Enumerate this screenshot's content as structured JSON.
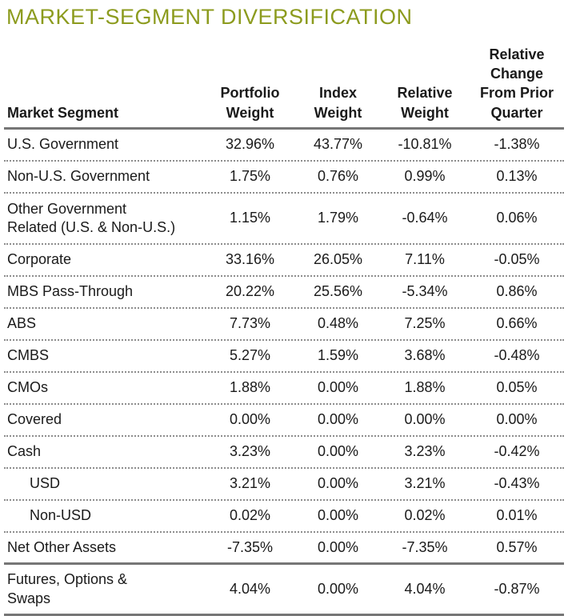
{
  "title": "MARKET-SEGMENT DIVERSIFICATION",
  "colors": {
    "title_green": "#8C9B1E",
    "body_text": "#1A1A1A",
    "solid_rule_gray": "#767676",
    "dotted_rule_gray": "#8D8D8D"
  },
  "table": {
    "columns": [
      "Market Segment",
      "Portfolio\nWeight",
      "Index\nWeight",
      "Relative\nWeight",
      "Relative\nChange\nFrom Prior\nQuarter"
    ],
    "rows": [
      {
        "segment": "U.S. Government",
        "values": [
          "32.96%",
          "43.77%",
          "-10.81%",
          "-1.38%"
        ]
      },
      {
        "segment": "Non-U.S. Government",
        "values": [
          "1.75%",
          "0.76%",
          "0.99%",
          "0.13%"
        ]
      },
      {
        "segment": "Other Government\nRelated (U.S. & Non-U.S.)",
        "tall": true,
        "values": [
          "1.15%",
          "1.79%",
          "-0.64%",
          "0.06%"
        ]
      },
      {
        "segment": "Corporate",
        "values": [
          "33.16%",
          "26.05%",
          "7.11%",
          "-0.05%"
        ]
      },
      {
        "segment": "MBS Pass-Through",
        "values": [
          "20.22%",
          "25.56%",
          "-5.34%",
          "0.86%"
        ]
      },
      {
        "segment": "ABS",
        "values": [
          "7.73%",
          "0.48%",
          "7.25%",
          "0.66%"
        ]
      },
      {
        "segment": "CMBS",
        "values": [
          "5.27%",
          "1.59%",
          "3.68%",
          "-0.48%"
        ]
      },
      {
        "segment": "CMOs",
        "values": [
          "1.88%",
          "0.00%",
          "1.88%",
          "0.05%"
        ]
      },
      {
        "segment": "Covered",
        "values": [
          "0.00%",
          "0.00%",
          "0.00%",
          "0.00%"
        ]
      },
      {
        "segment": "Cash",
        "values": [
          "3.23%",
          "0.00%",
          "3.23%",
          "-0.42%"
        ]
      },
      {
        "segment": "USD",
        "indent": true,
        "values": [
          "3.21%",
          "0.00%",
          "3.21%",
          "-0.43%"
        ]
      },
      {
        "segment": "Non-USD",
        "indent": true,
        "values": [
          "0.02%",
          "0.00%",
          "0.02%",
          "0.01%"
        ]
      },
      {
        "segment": "Net Other Assets",
        "separator": "solid",
        "values": [
          "-7.35%",
          "0.00%",
          "-7.35%",
          "0.57%"
        ]
      },
      {
        "segment": "Futures, Options &\nSwaps",
        "tall": true,
        "separator": "solid",
        "values": [
          "4.04%",
          "0.00%",
          "4.04%",
          "-0.87%"
        ]
      }
    ]
  },
  "chart_data": {
    "type": "table",
    "title": "MARKET-SEGMENT DIVERSIFICATION",
    "columns": [
      "Market Segment",
      "Portfolio Weight",
      "Index Weight",
      "Relative Weight",
      "Relative Change From Prior Quarter"
    ],
    "rows": [
      [
        "U.S. Government",
        32.96,
        43.77,
        -10.81,
        -1.38
      ],
      [
        "Non-U.S. Government",
        1.75,
        0.76,
        0.99,
        0.13
      ],
      [
        "Other Government Related (U.S. & Non-U.S.)",
        1.15,
        1.79,
        -0.64,
        0.06
      ],
      [
        "Corporate",
        33.16,
        26.05,
        7.11,
        -0.05
      ],
      [
        "MBS Pass-Through",
        20.22,
        25.56,
        -5.34,
        0.86
      ],
      [
        "ABS",
        7.73,
        0.48,
        7.25,
        0.66
      ],
      [
        "CMBS",
        5.27,
        1.59,
        3.68,
        -0.48
      ],
      [
        "CMOs",
        1.88,
        0.0,
        1.88,
        0.05
      ],
      [
        "Covered",
        0.0,
        0.0,
        0.0,
        0.0
      ],
      [
        "Cash",
        3.23,
        0.0,
        3.23,
        -0.42
      ],
      [
        "USD",
        3.21,
        0.0,
        3.21,
        -0.43
      ],
      [
        "Non-USD",
        0.02,
        0.0,
        0.02,
        0.01
      ],
      [
        "Net Other Assets",
        -7.35,
        0.0,
        -7.35,
        0.57
      ],
      [
        "Futures, Options & Swaps",
        4.04,
        0.0,
        4.04,
        -0.87
      ]
    ],
    "units": "percent",
    "notes": "Values as shown; indented sub-rows USD and Non-USD belong under Cash"
  }
}
